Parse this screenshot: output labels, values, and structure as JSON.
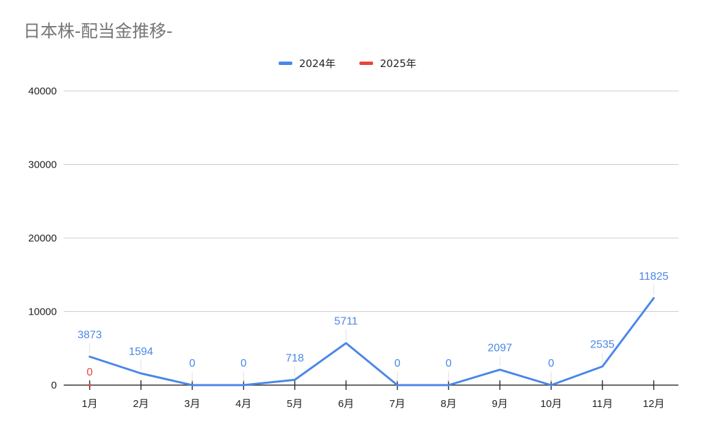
{
  "chart_data": {
    "type": "line",
    "title": "日本株-配当金推移-",
    "categories": [
      "1月",
      "2月",
      "3月",
      "4月",
      "5月",
      "6月",
      "7月",
      "8月",
      "9月",
      "10月",
      "11月",
      "12月"
    ],
    "series": [
      {
        "name": "2024年",
        "color": "#4a86e8",
        "values": [
          3873,
          1594,
          0,
          0,
          718,
          5711,
          0,
          0,
          2097,
          0,
          2535,
          11825
        ]
      },
      {
        "name": "2025年",
        "color": "#e8453c",
        "values": [
          0,
          null,
          null,
          null,
          null,
          null,
          null,
          null,
          null,
          null,
          null,
          null
        ]
      }
    ],
    "ylim": [
      0,
      40000
    ],
    "yticks": [
      "0",
      "10000",
      "20000",
      "30000",
      "40000"
    ],
    "grid": true,
    "legend": "top-center",
    "data_labels": true
  }
}
